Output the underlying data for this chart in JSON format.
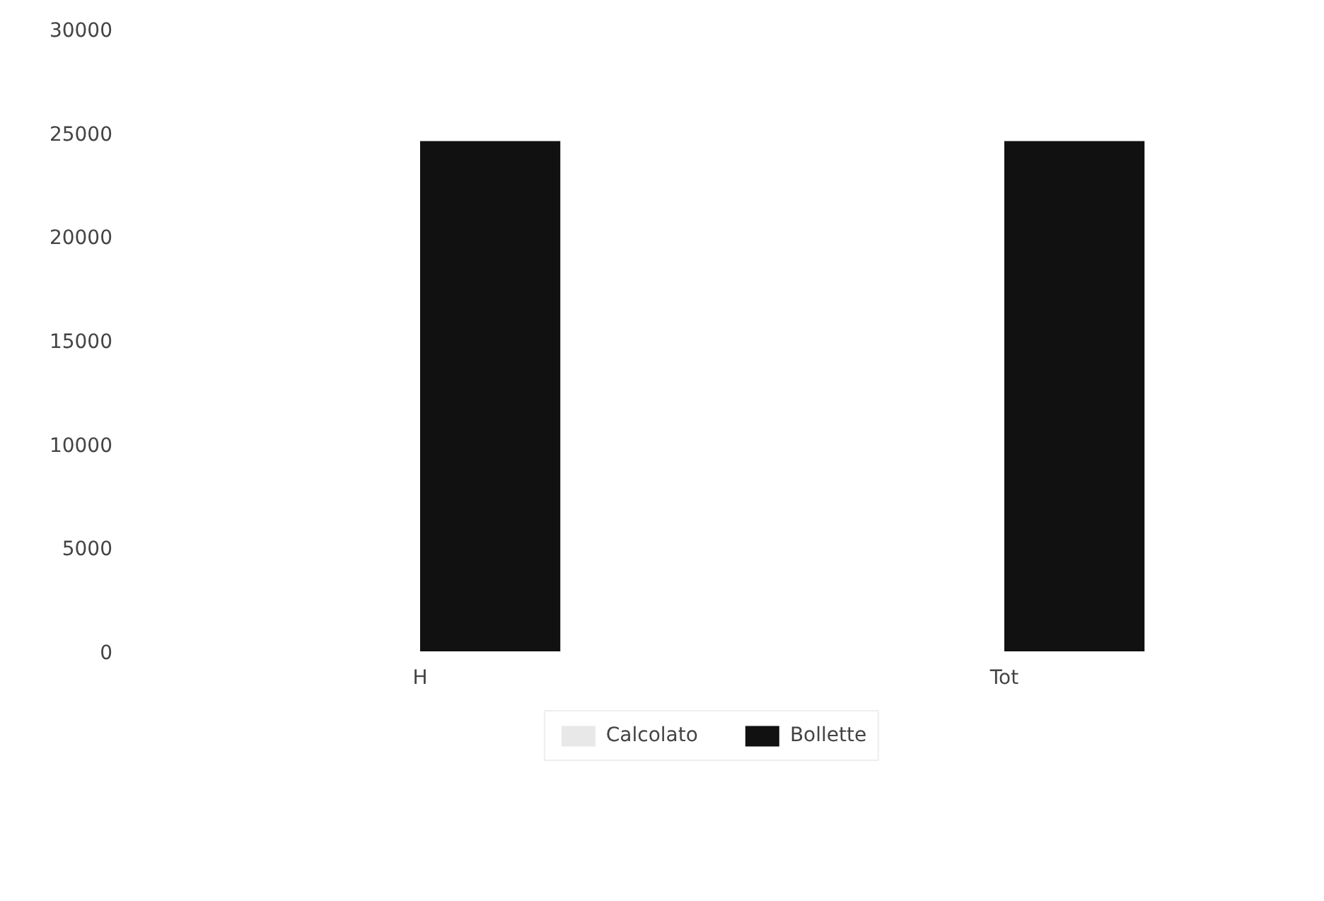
{
  "chart_data": {
    "type": "bar",
    "categories": [
      "H",
      "Tot"
    ],
    "series": [
      {
        "name": "Calcolato",
        "color": "#e8e8e8",
        "values": [
          null,
          null
        ]
      },
      {
        "name": "Bollette",
        "color": "#111111",
        "values": [
          24600,
          24600
        ]
      }
    ],
    "ylim": [
      0,
      30000
    ],
    "yticks": [
      0,
      5000,
      10000,
      15000,
      20000,
      25000,
      30000
    ],
    "grid": false,
    "legend": "bottom"
  }
}
